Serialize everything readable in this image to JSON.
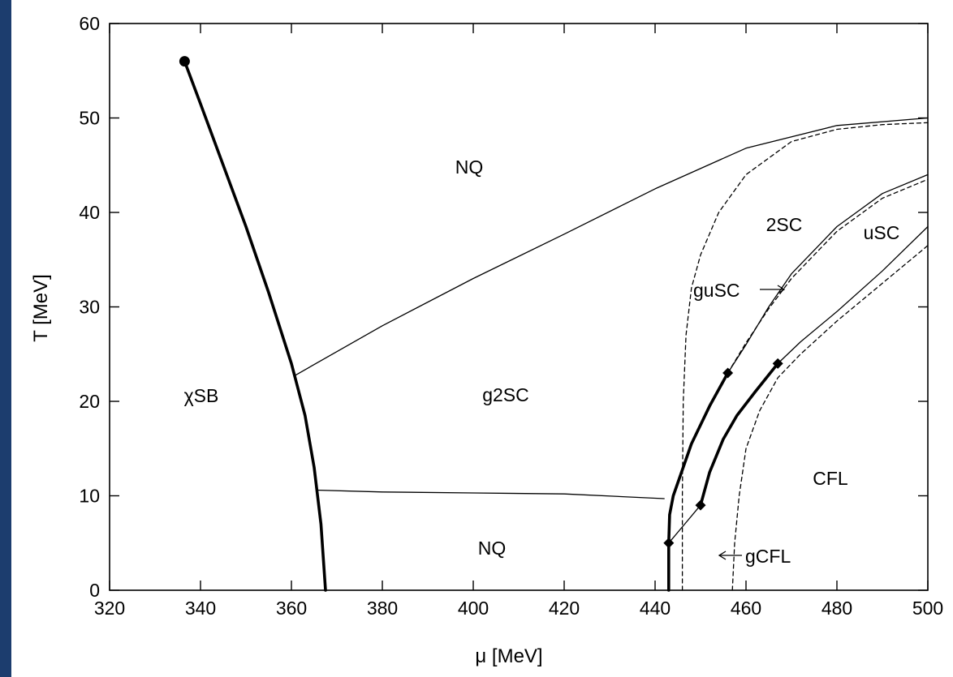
{
  "chart_data": {
    "type": "line",
    "xlabel": "μ [MeV]",
    "ylabel": "T [MeV]",
    "xlim": [
      320,
      500
    ],
    "ylim": [
      0,
      60
    ],
    "xticks": [
      "320",
      "340",
      "360",
      "380",
      "400",
      "420",
      "440",
      "460",
      "480",
      "500"
    ],
    "yticks": [
      "0",
      "10",
      "20",
      "30",
      "40",
      "50",
      "60"
    ],
    "grid": false,
    "region_labels": {
      "nq_top": "NQ",
      "nq_bottom": "NQ",
      "chisb": "χSB",
      "g2sc": "g2SC",
      "twosc": "2SC",
      "usc": "uSC",
      "cfl": "CFL",
      "gusc": "guSC",
      "gcfl": "gCFL"
    },
    "series": [
      {
        "style": "thick",
        "points": [
          [
            336.5,
            56
          ],
          [
            340,
            51.5
          ],
          [
            345,
            45
          ],
          [
            350,
            38.5
          ],
          [
            355,
            31.5
          ],
          [
            360,
            24
          ],
          [
            363,
            18.5
          ],
          [
            365,
            13
          ],
          [
            366.5,
            7
          ],
          [
            367.5,
            0
          ]
        ]
      },
      {
        "style": "thin",
        "points": [
          [
            361,
            22.8
          ],
          [
            380,
            28
          ],
          [
            400,
            33
          ],
          [
            420,
            37.7
          ],
          [
            440,
            42.5
          ],
          [
            460,
            46.8
          ],
          [
            480,
            49.2
          ],
          [
            500,
            50
          ]
        ]
      },
      {
        "style": "thin",
        "points": [
          [
            365.5,
            10.6
          ],
          [
            380,
            10.4
          ],
          [
            400,
            10.3
          ],
          [
            420,
            10.2
          ],
          [
            442,
            9.7
          ]
        ]
      },
      {
        "style": "thick",
        "points": [
          [
            443,
            0
          ],
          [
            443,
            5
          ],
          [
            443.2,
            8
          ],
          [
            444,
            10
          ],
          [
            448,
            15.5
          ],
          [
            452,
            19.5
          ],
          [
            456,
            23
          ]
        ]
      },
      {
        "style": "thick",
        "points": [
          [
            450,
            9
          ],
          [
            452,
            12.5
          ],
          [
            455,
            16
          ],
          [
            458,
            18.5
          ],
          [
            462,
            21
          ],
          [
            467,
            24
          ]
        ]
      },
      {
        "style": "thin",
        "points": [
          [
            443,
            5
          ],
          [
            446.5,
            7
          ],
          [
            450,
            9
          ]
        ]
      },
      {
        "style": "thin",
        "points": [
          [
            456,
            23
          ],
          [
            460,
            26
          ],
          [
            465,
            30
          ],
          [
            470,
            33.5
          ],
          [
            480,
            38.5
          ],
          [
            490,
            42
          ],
          [
            500,
            44
          ]
        ]
      },
      {
        "style": "thin",
        "points": [
          [
            467,
            24
          ],
          [
            472,
            26.3
          ],
          [
            480,
            29.5
          ],
          [
            490,
            33.8
          ],
          [
            500,
            38.5
          ]
        ]
      },
      {
        "style": "dashed",
        "points": [
          [
            446,
            0
          ],
          [
            446,
            10
          ],
          [
            446.2,
            20
          ],
          [
            446.8,
            27
          ],
          [
            448,
            32
          ],
          [
            450,
            35.5
          ],
          [
            454,
            40
          ],
          [
            460,
            44
          ],
          [
            470,
            47.5
          ],
          [
            480,
            48.8
          ],
          [
            490,
            49.3
          ],
          [
            500,
            49.5
          ]
        ]
      },
      {
        "style": "dashed",
        "points": [
          [
            456,
            23
          ],
          [
            460,
            26.2
          ],
          [
            465,
            29.8
          ],
          [
            470,
            33
          ],
          [
            480,
            38
          ],
          [
            490,
            41.5
          ],
          [
            500,
            43.5
          ]
        ]
      },
      {
        "style": "dashed",
        "points": [
          [
            457,
            0
          ],
          [
            457.5,
            5
          ],
          [
            458.5,
            10
          ],
          [
            460,
            15
          ],
          [
            463,
            19
          ],
          [
            467,
            22.5
          ],
          [
            472,
            25
          ],
          [
            480,
            28.5
          ],
          [
            490,
            32.5
          ],
          [
            500,
            36.5
          ]
        ]
      }
    ],
    "endpoints": {
      "circle": [
        [
          336.5,
          56
        ]
      ],
      "diamond": [
        [
          443,
          5
        ],
        [
          450,
          9
        ],
        [
          456,
          23
        ],
        [
          467,
          24
        ]
      ]
    },
    "colors": {
      "background": "#1c3d6e",
      "plot_bg": "#ffffff",
      "ink": "#000000"
    }
  }
}
